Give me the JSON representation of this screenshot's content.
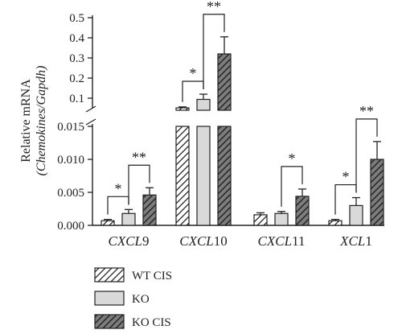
{
  "chart_data": {
    "type": "bar",
    "ylabel": "Relative mRNA",
    "ylabel_sub": "(Chemokines/Gapdh)",
    "categories": [
      {
        "prefix": "CXCL",
        "suffix": "9"
      },
      {
        "prefix": "CXCL",
        "suffix": "10"
      },
      {
        "prefix": "CXCL",
        "suffix": "11"
      },
      {
        "prefix": "XCL",
        "suffix": "1"
      }
    ],
    "axis_break": true,
    "lower_ylim": [
      0,
      0.015
    ],
    "lower_ticks": [
      "0.000",
      "0.005",
      "0.010",
      "0.015"
    ],
    "upper_ylim": [
      0,
      0.5
    ],
    "upper_ticks": [
      "0.1",
      "0.2",
      "0.3",
      "0.4",
      "0.5"
    ],
    "series": [
      {
        "name": "WT CIS",
        "pattern": "hatch-light",
        "values": [
          0.0007,
          0.02,
          0.0016,
          0.0007
        ],
        "errors": [
          0.0002,
          0.008,
          0.0003,
          0.0002
        ]
      },
      {
        "name": "KO",
        "pattern": "solid-gray",
        "values": [
          0.0018,
          0.09,
          0.0018,
          0.003
        ],
        "errors": [
          0.0006,
          0.03,
          0.0003,
          0.0012
        ]
      },
      {
        "name": "KO CIS",
        "pattern": "hatch-dark",
        "values": [
          0.0046,
          0.32,
          0.0044,
          0.01
        ],
        "errors": [
          0.0011,
          0.085,
          0.0011,
          0.0027
        ]
      }
    ],
    "significance": [
      {
        "category": 0,
        "from": 0,
        "to": 1,
        "label": "*"
      },
      {
        "category": 0,
        "from": 1,
        "to": 2,
        "label": "**"
      },
      {
        "category": 1,
        "from": 0,
        "to": 1,
        "label": "*"
      },
      {
        "category": 1,
        "from": 1,
        "to": 2,
        "label": "**"
      },
      {
        "category": 2,
        "from": 1,
        "to": 2,
        "label": "*"
      },
      {
        "category": 3,
        "from": 0,
        "to": 1,
        "label": "*"
      },
      {
        "category": 3,
        "from": 1,
        "to": 2,
        "label": "**"
      }
    ]
  }
}
